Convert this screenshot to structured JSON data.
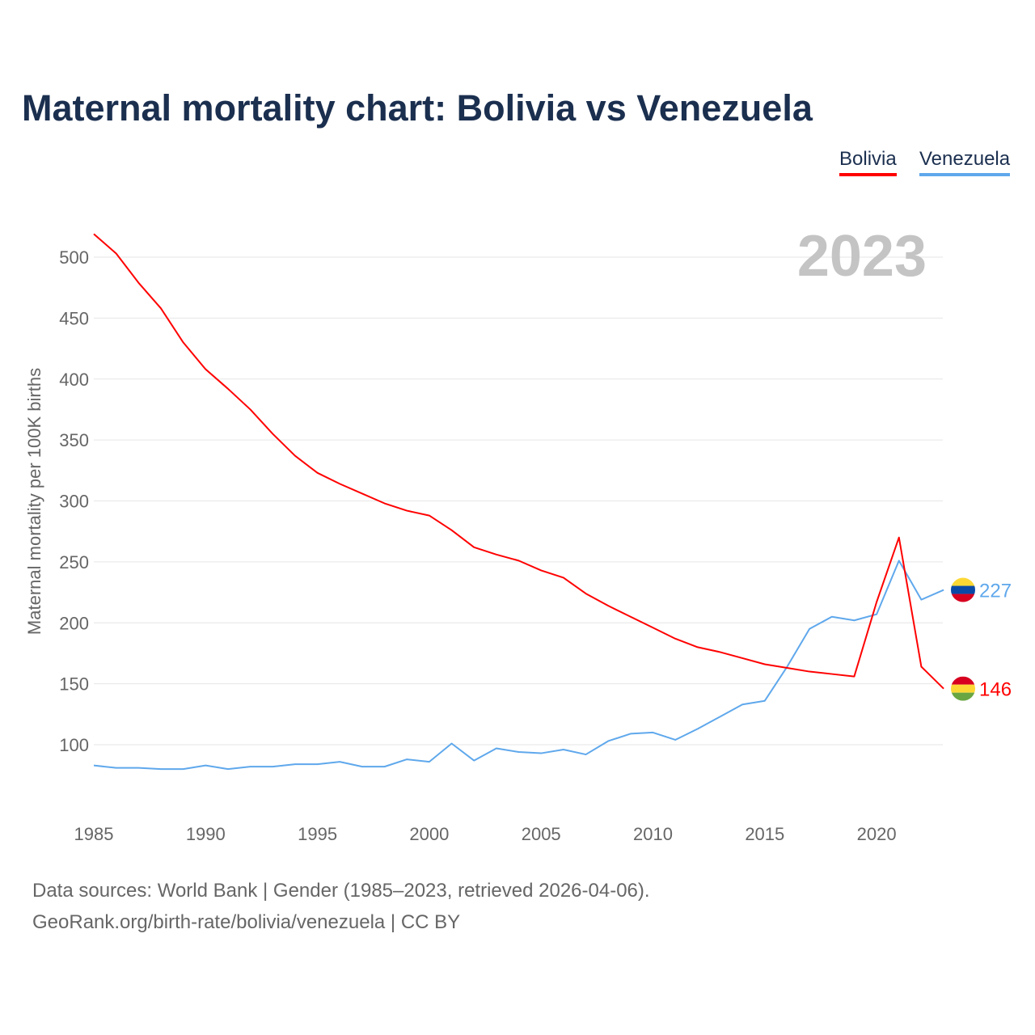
{
  "title": "Maternal mortality chart: Bolivia vs Venezuela",
  "footer": {
    "line1": "Data sources: World Bank | Gender (1985–2023, retrieved 2026-04-06).",
    "line2": "GeoRank.org/birth-rate/bolivia/venezuela | CC BY"
  },
  "chart_data": {
    "type": "line",
    "title": "Maternal mortality chart: Bolivia vs Venezuela",
    "ylabel": "Maternal mortality per 100K births",
    "xlabel": "",
    "year_watermark": "2023",
    "xlim": [
      1985,
      2023
    ],
    "ylim": [
      50,
      520
    ],
    "grid": true,
    "legend_position": "top-right",
    "x_ticks": [
      "1985",
      "1990",
      "1995",
      "2000",
      "2005",
      "2010",
      "2015",
      "2020"
    ],
    "y_ticks": [
      "100",
      "150",
      "200",
      "250",
      "300",
      "350",
      "400",
      "450",
      "500"
    ],
    "x": [
      1985,
      1986,
      1987,
      1988,
      1989,
      1990,
      1991,
      1992,
      1993,
      1994,
      1995,
      1996,
      1997,
      1998,
      1999,
      2000,
      2001,
      2002,
      2003,
      2004,
      2005,
      2006,
      2007,
      2008,
      2009,
      2010,
      2011,
      2012,
      2013,
      2014,
      2015,
      2016,
      2017,
      2018,
      2019,
      2020,
      2021,
      2022,
      2023
    ],
    "series": [
      {
        "name": "Bolivia",
        "color": "#ff0000",
        "end_label": "146",
        "values": [
          519,
          503,
          479,
          458,
          430,
          408,
          392,
          375,
          355,
          337,
          323,
          314,
          306,
          298,
          292,
          288,
          276,
          262,
          256,
          251,
          243,
          237,
          224,
          214,
          205,
          196,
          187,
          180,
          176,
          171,
          166,
          163,
          160,
          158,
          156,
          217,
          270,
          164,
          146
        ]
      },
      {
        "name": "Venezuela",
        "color": "#5fa8ec",
        "end_label": "227",
        "values": [
          83,
          81,
          81,
          80,
          80,
          83,
          80,
          82,
          82,
          84,
          84,
          86,
          82,
          82,
          88,
          86,
          101,
          87,
          97,
          94,
          93,
          96,
          92,
          103,
          109,
          110,
          104,
          113,
          123,
          133,
          136,
          164,
          195,
          205,
          202,
          207,
          251,
          219,
          227
        ]
      }
    ]
  }
}
